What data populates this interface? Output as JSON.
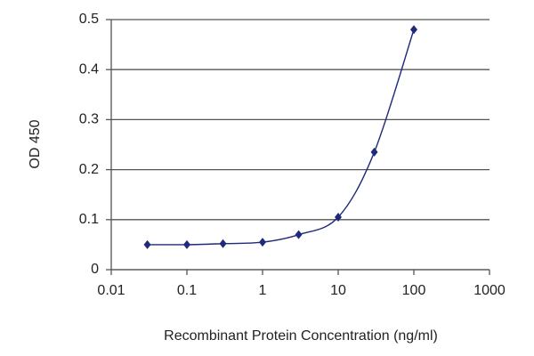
{
  "chart_data": {
    "type": "line",
    "xlabel": "Recombinant Protein Concentration (ng/ml)",
    "ylabel": "OD 450",
    "x": [
      0.03,
      0.1,
      0.3,
      1,
      3,
      10,
      30,
      100
    ],
    "series": [
      {
        "name": null,
        "color": "#1f2a7a",
        "values": [
          0.05,
          0.05,
          0.052,
          0.055,
          0.07,
          0.105,
          0.235,
          0.48
        ]
      }
    ],
    "xscale": "log",
    "xlim": [
      0.01,
      1000
    ],
    "xticks": [
      0.01,
      0.1,
      1,
      10,
      100,
      1000
    ],
    "ylim": [
      0,
      0.5
    ],
    "yticks": [
      0,
      0.1,
      0.2,
      0.3,
      0.4,
      0.5
    ],
    "grid": true
  }
}
